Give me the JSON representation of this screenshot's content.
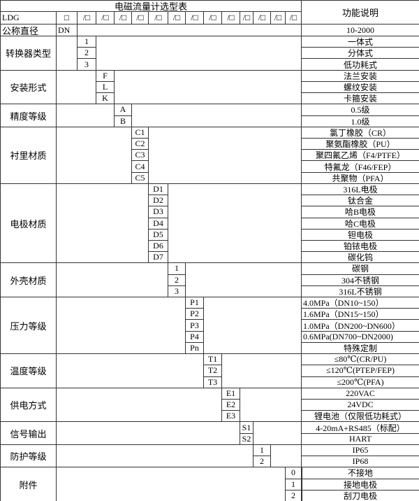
{
  "title": "电磁流量计选型表",
  "desc_header": "功能说明",
  "model_row": {
    "label": "LDG",
    "codes": [
      "□",
      "/□",
      "/□",
      "/□",
      "/□",
      "/□",
      "/□",
      "/□",
      "/□",
      "/□",
      "/□",
      "/□",
      "/□",
      "/□"
    ]
  },
  "size_row": {
    "label": "公称直径",
    "code": "DN",
    "desc": "10-2000"
  },
  "groups": [
    {
      "label": "转换器类型",
      "options": [
        {
          "code": "1",
          "desc": "一体式"
        },
        {
          "code": "2",
          "desc": "分体式"
        },
        {
          "code": "3",
          "desc": "低功耗式"
        }
      ]
    },
    {
      "label": "安装形式",
      "options": [
        {
          "code": "F",
          "desc": "法兰安装"
        },
        {
          "code": "L",
          "desc": "螺纹安装"
        },
        {
          "code": "K",
          "desc": "卡箍安装"
        }
      ]
    },
    {
      "label": "精度等级",
      "options": [
        {
          "code": "A",
          "desc": "0.5级"
        },
        {
          "code": "B",
          "desc": "1.0级"
        }
      ]
    },
    {
      "label": "衬里材质",
      "options": [
        {
          "code": "C1",
          "desc": "氯丁橡胶（CR）"
        },
        {
          "code": "C2",
          "desc": "聚氨酯橡胶（PU）"
        },
        {
          "code": "C3",
          "desc": "聚四氟乙烯（F4/PTFE）"
        },
        {
          "code": "C4",
          "desc": "特氟龙（F46/FEP）"
        },
        {
          "code": "C5",
          "desc": "共聚物（PFA）"
        }
      ]
    },
    {
      "label": "电极材质",
      "options": [
        {
          "code": "D1",
          "desc": "316L电极"
        },
        {
          "code": "D2",
          "desc": "钛合金"
        },
        {
          "code": "D3",
          "desc": "哈B电极"
        },
        {
          "code": "D4",
          "desc": "哈C电极"
        },
        {
          "code": "D5",
          "desc": "钽电极"
        },
        {
          "code": "D6",
          "desc": "铂铱电极"
        },
        {
          "code": "D7",
          "desc": "碳化钨"
        }
      ]
    },
    {
      "label": "外壳材质",
      "options": [
        {
          "code": "1",
          "desc": "碳钢"
        },
        {
          "code": "2",
          "desc": "304不锈钢"
        },
        {
          "code": "3",
          "desc": "316L不锈钢"
        }
      ]
    },
    {
      "label": "压力等级",
      "options": [
        {
          "code": "P1",
          "desc": "4.0MPa（DN10~150）",
          "left": true
        },
        {
          "code": "P2",
          "desc": "1.6MPa（DN15~150）",
          "left": true
        },
        {
          "code": "P3",
          "desc": "1.0MPa（DN200~DN600）",
          "left": true
        },
        {
          "code": "P4",
          "desc": "0.6MPa(DN700~DN2000)",
          "left": true
        },
        {
          "code": "Pn",
          "desc": "特殊定制"
        }
      ]
    },
    {
      "label": "温度等级",
      "options": [
        {
          "code": "T1",
          "desc": "≤80℃(CR/PU)"
        },
        {
          "code": "T2",
          "desc": "≤120℃(PTEP/FEP)"
        },
        {
          "code": "T3",
          "desc": "≤200℃(PFA)"
        }
      ]
    },
    {
      "label": "供电方式",
      "options": [
        {
          "code": "E1",
          "desc": "220VAC"
        },
        {
          "code": "E2",
          "desc": "24VDC"
        },
        {
          "code": "E3",
          "desc": "锂电池（仅限低功耗式）"
        }
      ]
    },
    {
      "label": "信号输出",
      "options": [
        {
          "code": "S1",
          "desc": "4-20mA+RS485（标配）"
        },
        {
          "code": "S2",
          "desc": "HART"
        }
      ]
    },
    {
      "label": "防护等级",
      "options": [
        {
          "code": "1",
          "desc": "IP65"
        },
        {
          "code": "2",
          "desc": "IP68"
        }
      ]
    },
    {
      "label": "附件",
      "options": [
        {
          "code": "0",
          "desc": "不接地"
        },
        {
          "code": "1",
          "desc": "接地电极"
        },
        {
          "code": "2",
          "desc": "刮刀电极"
        }
      ]
    }
  ]
}
